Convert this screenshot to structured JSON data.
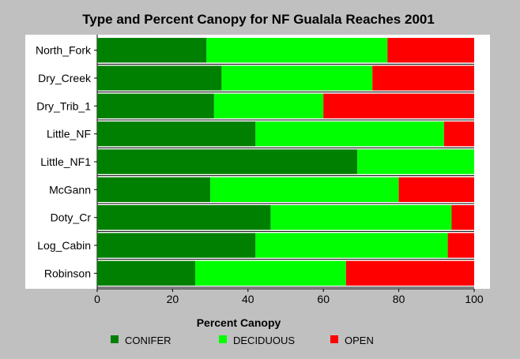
{
  "chart_data": {
    "type": "bar",
    "orientation": "horizontal",
    "stacked": true,
    "title": "Type and Percent Canopy for NF Gualala Reaches 2001",
    "xlabel": "Percent Canopy",
    "ylabel": "",
    "xlim": [
      0,
      100
    ],
    "xticks": [
      0,
      20,
      40,
      60,
      80,
      100
    ],
    "categories": [
      "North_Fork",
      "Dry_Creek",
      "Dry_Trib_1",
      "Little_NF",
      "Little_NF1",
      "McGann",
      "Doty_Cr",
      "Log_Cabin",
      "Robinson"
    ],
    "series": [
      {
        "name": "CONIFER",
        "color": "#008000",
        "values": [
          29,
          33,
          31,
          42,
          69,
          30,
          46,
          42,
          26
        ]
      },
      {
        "name": "DECIDUOUS",
        "color": "#00ff00",
        "values": [
          48,
          40,
          29,
          50,
          31,
          50,
          48,
          51,
          40
        ]
      },
      {
        "name": "OPEN",
        "color": "#ff0000",
        "values": [
          23,
          27,
          40,
          8,
          0,
          20,
          6,
          7,
          34
        ]
      }
    ],
    "grid": false,
    "legend_position": "bottom"
  }
}
